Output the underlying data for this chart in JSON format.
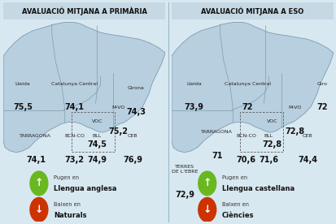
{
  "left_title": "AVALUACIÓ MITJANA A PRIMÀRIA",
  "right_title": "AVALUACIÓ MITJANA A ESO",
  "bg_color": "#d8e8f0",
  "map_color": "#b8cfe0",
  "map_border_color": "#7a9db0",
  "title_bg": "#c5d8e4",
  "left_regions": [
    {
      "name": "Girona",
      "value": "74,3",
      "nx": 0.82,
      "ny": 0.6,
      "vx": 0.82,
      "vy": 0.52
    },
    {
      "name": "Lleida",
      "value": "75,5",
      "nx": 0.12,
      "ny": 0.62,
      "vx": 0.12,
      "vy": 0.54
    },
    {
      "name": "Catalunya Central",
      "value": "74,1",
      "nx": 0.44,
      "ny": 0.62,
      "vx": 0.44,
      "vy": 0.54
    },
    {
      "name": "M-VO",
      "value": "75,2",
      "nx": 0.71,
      "ny": 0.51,
      "vx": 0.71,
      "vy": 0.43
    },
    {
      "name": "VOC",
      "value": "74,5",
      "nx": 0.58,
      "ny": 0.45,
      "vx": 0.58,
      "vy": 0.37
    },
    {
      "name": "BCN-CO",
      "value": "73,2",
      "nx": 0.44,
      "ny": 0.38,
      "vx": 0.44,
      "vy": 0.3
    },
    {
      "name": "BLL",
      "value": "74,9",
      "nx": 0.58,
      "ny": 0.38,
      "vx": 0.58,
      "vy": 0.3
    },
    {
      "name": "CEB",
      "value": "76,9",
      "nx": 0.8,
      "ny": 0.38,
      "vx": 0.8,
      "vy": 0.3
    },
    {
      "name": "TARRAGONA",
      "value": "74,1",
      "nx": 0.2,
      "ny": 0.38,
      "vx": 0.2,
      "vy": 0.3
    }
  ],
  "right_regions": [
    {
      "name": "Giro",
      "value": "72",
      "nx": 0.93,
      "ny": 0.62,
      "vx": 0.93,
      "vy": 0.54
    },
    {
      "name": "Lleida",
      "value": "73,9",
      "nx": 0.14,
      "ny": 0.62,
      "vx": 0.14,
      "vy": 0.54
    },
    {
      "name": "Catalunya Central",
      "value": "72",
      "nx": 0.47,
      "ny": 0.62,
      "vx": 0.47,
      "vy": 0.54
    },
    {
      "name": "M-VO",
      "value": "72,8",
      "nx": 0.76,
      "ny": 0.51,
      "vx": 0.76,
      "vy": 0.43
    },
    {
      "name": "VOC",
      "value": "72,8",
      "nx": 0.62,
      "ny": 0.45,
      "vx": 0.62,
      "vy": 0.37
    },
    {
      "name": "BCN-CO",
      "value": "70,6",
      "nx": 0.46,
      "ny": 0.38,
      "vx": 0.46,
      "vy": 0.3
    },
    {
      "name": "BLL",
      "value": "71,6",
      "nx": 0.6,
      "ny": 0.38,
      "vx": 0.6,
      "vy": 0.3
    },
    {
      "name": "CEB",
      "value": "74,4",
      "nx": 0.84,
      "ny": 0.38,
      "vx": 0.84,
      "vy": 0.3
    },
    {
      "name": "TARRAGONA",
      "value": "71",
      "nx": 0.28,
      "ny": 0.4,
      "vx": 0.28,
      "vy": 0.32
    },
    {
      "name": "TERRES\nDE L'EBRE",
      "value": "72,9",
      "nx": 0.08,
      "ny": 0.22,
      "vx": 0.08,
      "vy": 0.14
    }
  ],
  "left_up_label": "Pugen en",
  "left_up_subject": "Llengua anglesa",
  "left_down_label": "Baixen en",
  "left_down_subject": "Naturals",
  "right_up_label": "Pugen en",
  "right_up_subject": "Llengua castellana",
  "right_down_label": "Baixen en",
  "right_down_subject": "Ciències",
  "arrow_up_color": "#6ab820",
  "arrow_down_color": "#cc3300",
  "name_fontsize": 4.5,
  "value_fontsize": 7.0,
  "title_fontsize": 6.0
}
